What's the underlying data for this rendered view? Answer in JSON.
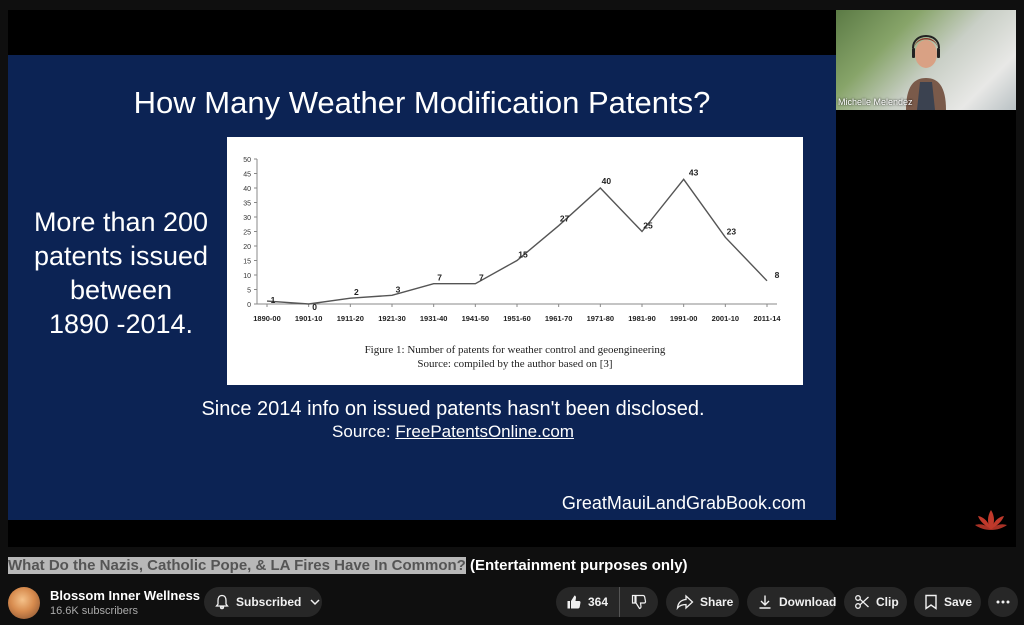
{
  "slide": {
    "title": "How Many Weather Modification Patents?",
    "left_lines": [
      "More than 200",
      "patents issued",
      "between",
      "1890 -2014."
    ],
    "note": "Since 2014 info on issued patents hasn't been disclosed.",
    "source_prefix": "Source: ",
    "source_link": "FreePatentsOnline.com",
    "brand": "GreatMauiLandGrabBook.com"
  },
  "chart_data": {
    "type": "line",
    "categories": [
      "1890-00",
      "1901-10",
      "1911-20",
      "1921-30",
      "1931-40",
      "1941-50",
      "1951-60",
      "1961-70",
      "1971-80",
      "1981-90",
      "1991-00",
      "2001-10",
      "2011-14"
    ],
    "values": [
      1,
      0,
      2,
      3,
      7,
      7,
      15,
      27,
      40,
      25,
      43,
      23,
      8
    ],
    "y_ticks": [
      "0",
      "5",
      "10",
      "15",
      "20",
      "25",
      "30",
      "35",
      "40",
      "45",
      "50"
    ],
    "ylim": [
      0,
      50
    ],
    "caption": "Figure 1: Number of patents for weather control and geoengineering",
    "source": "Source: compiled by the author based on [3]",
    "title": "",
    "xlabel": "",
    "ylabel": "",
    "grid": false
  },
  "camera": {
    "name": "Michelle Melendez"
  },
  "video": {
    "title_highlight": "What Do the Nazis, Catholic Pope, & LA Fires Have In Common?",
    "title_rest": " (Entertainment purposes only)"
  },
  "channel": {
    "name": "Blossom Inner Wellness",
    "subscribers": "16.6K subscribers",
    "subscribe_label": "Subscribed"
  },
  "actions": {
    "likes": "364",
    "share": "Share",
    "download": "Download",
    "clip": "Clip",
    "save": "Save"
  },
  "icons": [
    "bell-icon",
    "chevron-down-icon",
    "thumbs-up-icon",
    "thumbs-down-icon",
    "share-icon",
    "download-icon",
    "scissors-icon",
    "bookmark-icon",
    "more-icon",
    "lotus-logo-icon"
  ],
  "colors": {
    "slide_bg": "#0c2354",
    "page_bg": "#0f0f0f",
    "pill_bg": "#272727",
    "lotus": "#c0392b"
  }
}
